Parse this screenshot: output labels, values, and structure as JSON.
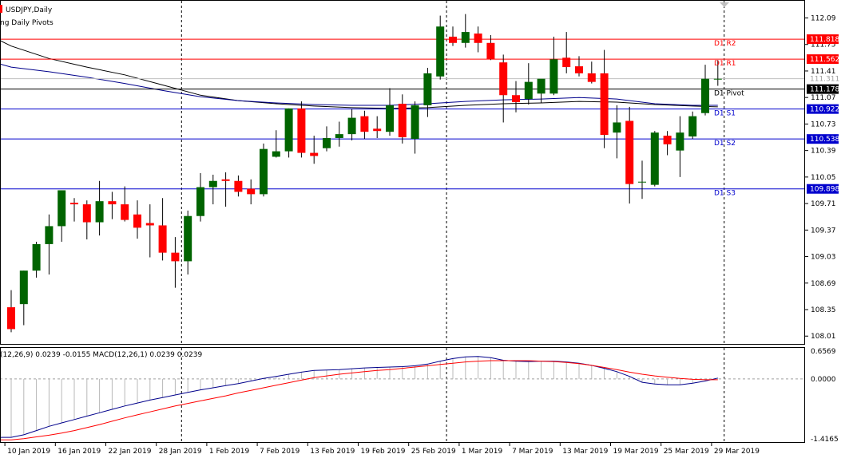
{
  "window": {
    "title": "USDJPY,Daily",
    "indicator_label": "ng Daily Pivots"
  },
  "colors": {
    "bull": "#006400",
    "bear": "#ff0000",
    "wick": "#000000",
    "resistance": "#ff0000",
    "support": "#0000cd",
    "pivot": "#000000",
    "ma_dark": "#000000",
    "ma_blue": "#00008b",
    "macd_line": "#00008b",
    "signal_line": "#ff0000",
    "grid": "#c0c0c0",
    "price_box": "#ffffff"
  },
  "chart_data": [
    {
      "type": "candlestick",
      "title": "USDJPY,Daily",
      "price_axis_ticks": [
        112.09,
        111.75,
        111.41,
        111.07,
        110.73,
        110.39,
        110.05,
        109.71,
        109.37,
        109.03,
        108.69,
        108.35,
        108.01
      ],
      "ylim": [
        107.91,
        112.31
      ],
      "date_labels": [
        {
          "label": "10 Jan 2019",
          "x": 0
        },
        {
          "label": "16 Jan 2019",
          "x": 4
        },
        {
          "label": "22 Jan 2019",
          "x": 8
        },
        {
          "label": "28 Jan 2019",
          "x": 12
        },
        {
          "label": "1 Feb 2019",
          "x": 16
        },
        {
          "label": "7 Feb 2019",
          "x": 20
        },
        {
          "label": "13 Feb 2019",
          "x": 24
        },
        {
          "label": "19 Feb 2019",
          "x": 28
        },
        {
          "label": "25 Feb 2019",
          "x": 32
        },
        {
          "label": "1 Mar 2019",
          "x": 36
        },
        {
          "label": "7 Mar 2019",
          "x": 40
        },
        {
          "label": "13 Mar 2019",
          "x": 44
        },
        {
          "label": "19 Mar 2019",
          "x": 48
        },
        {
          "label": "25 Mar 2019",
          "x": 52
        },
        {
          "label": "29 Mar 2019",
          "x": 56
        }
      ],
      "period_separators": [
        14,
        35,
        57
      ],
      "candles": [
        {
          "o": 108.38,
          "h": 108.6,
          "l": 108.06,
          "c": 108.1
        },
        {
          "o": 108.42,
          "h": 108.85,
          "l": 108.15,
          "c": 108.85
        },
        {
          "o": 108.85,
          "h": 109.22,
          "l": 108.76,
          "c": 109.19
        },
        {
          "o": 109.19,
          "h": 109.57,
          "l": 108.8,
          "c": 109.42
        },
        {
          "o": 109.42,
          "h": 109.88,
          "l": 109.22,
          "c": 109.88
        },
        {
          "o": 109.72,
          "h": 109.78,
          "l": 109.48,
          "c": 109.7
        },
        {
          "o": 109.7,
          "h": 109.75,
          "l": 109.25,
          "c": 109.47
        },
        {
          "o": 109.47,
          "h": 110.0,
          "l": 109.3,
          "c": 109.74
        },
        {
          "o": 109.74,
          "h": 109.86,
          "l": 109.51,
          "c": 109.7
        },
        {
          "o": 109.7,
          "h": 109.93,
          "l": 109.48,
          "c": 109.5
        },
        {
          "o": 109.57,
          "h": 109.75,
          "l": 109.26,
          "c": 109.4
        },
        {
          "o": 109.46,
          "h": 109.7,
          "l": 109.02,
          "c": 109.43
        },
        {
          "o": 109.43,
          "h": 109.78,
          "l": 108.98,
          "c": 109.08
        },
        {
          "o": 109.08,
          "h": 109.28,
          "l": 108.63,
          "c": 108.97
        },
        {
          "o": 108.97,
          "h": 109.62,
          "l": 108.8,
          "c": 109.55
        },
        {
          "o": 109.55,
          "h": 110.1,
          "l": 109.48,
          "c": 109.92
        },
        {
          "o": 109.92,
          "h": 110.08,
          "l": 109.7,
          "c": 110.0
        },
        {
          "o": 110.02,
          "h": 110.11,
          "l": 109.67,
          "c": 110.0
        },
        {
          "o": 110.0,
          "h": 110.07,
          "l": 109.8,
          "c": 109.86
        },
        {
          "o": 109.9,
          "h": 110.02,
          "l": 109.7,
          "c": 109.83
        },
        {
          "o": 109.83,
          "h": 110.48,
          "l": 109.8,
          "c": 110.41
        },
        {
          "o": 110.31,
          "h": 110.65,
          "l": 110.3,
          "c": 110.38
        },
        {
          "o": 110.38,
          "h": 110.93,
          "l": 110.3,
          "c": 110.93
        },
        {
          "o": 110.93,
          "h": 111.02,
          "l": 110.3,
          "c": 110.36
        },
        {
          "o": 110.36,
          "h": 110.58,
          "l": 110.22,
          "c": 110.32
        },
        {
          "o": 110.42,
          "h": 110.7,
          "l": 110.38,
          "c": 110.55
        },
        {
          "o": 110.55,
          "h": 110.76,
          "l": 110.44,
          "c": 110.6
        },
        {
          "o": 110.6,
          "h": 110.92,
          "l": 110.52,
          "c": 110.81
        },
        {
          "o": 110.83,
          "h": 110.9,
          "l": 110.54,
          "c": 110.63
        },
        {
          "o": 110.67,
          "h": 110.83,
          "l": 110.55,
          "c": 110.64
        },
        {
          "o": 110.63,
          "h": 111.19,
          "l": 110.58,
          "c": 110.97
        },
        {
          "o": 110.99,
          "h": 111.11,
          "l": 110.48,
          "c": 110.56
        },
        {
          "o": 110.54,
          "h": 111.02,
          "l": 110.35,
          "c": 110.97
        },
        {
          "o": 110.97,
          "h": 111.45,
          "l": 110.82,
          "c": 111.38
        },
        {
          "o": 111.34,
          "h": 112.12,
          "l": 111.3,
          "c": 111.98
        },
        {
          "o": 111.85,
          "h": 111.98,
          "l": 111.73,
          "c": 111.77
        },
        {
          "o": 111.77,
          "h": 112.14,
          "l": 111.71,
          "c": 111.91
        },
        {
          "o": 111.89,
          "h": 111.98,
          "l": 111.65,
          "c": 111.77
        },
        {
          "o": 111.77,
          "h": 111.87,
          "l": 111.55,
          "c": 111.56
        },
        {
          "o": 111.52,
          "h": 111.62,
          "l": 110.75,
          "c": 111.1
        },
        {
          "o": 111.1,
          "h": 111.28,
          "l": 110.88,
          "c": 111.01
        },
        {
          "o": 111.05,
          "h": 111.51,
          "l": 110.98,
          "c": 111.27
        },
        {
          "o": 111.12,
          "h": 111.3,
          "l": 111.0,
          "c": 111.31
        },
        {
          "o": 111.12,
          "h": 111.85,
          "l": 111.1,
          "c": 111.56
        },
        {
          "o": 111.58,
          "h": 111.91,
          "l": 111.38,
          "c": 111.46
        },
        {
          "o": 111.47,
          "h": 111.6,
          "l": 111.34,
          "c": 111.38
        },
        {
          "o": 111.38,
          "h": 111.53,
          "l": 111.25,
          "c": 111.27
        },
        {
          "o": 111.38,
          "h": 111.68,
          "l": 110.42,
          "c": 110.59
        },
        {
          "o": 110.62,
          "h": 110.97,
          "l": 110.29,
          "c": 110.75
        },
        {
          "o": 110.77,
          "h": 110.95,
          "l": 109.71,
          "c": 109.96
        },
        {
          "o": 109.98,
          "h": 110.26,
          "l": 109.77,
          "c": 109.99
        },
        {
          "o": 109.95,
          "h": 110.64,
          "l": 109.93,
          "c": 110.62
        },
        {
          "o": 110.58,
          "h": 110.64,
          "l": 110.33,
          "c": 110.47
        },
        {
          "o": 110.39,
          "h": 110.83,
          "l": 110.05,
          "c": 110.62
        },
        {
          "o": 110.57,
          "h": 110.89,
          "l": 110.54,
          "c": 110.83
        },
        {
          "o": 110.87,
          "h": 111.49,
          "l": 110.84,
          "c": 111.31
        },
        {
          "o": 111.31,
          "h": 111.55,
          "l": 111.22,
          "c": 111.31
        }
      ],
      "moving_averages": [
        {
          "color_key": "ma_dark",
          "values": [
            [
              0,
              111.73
            ],
            [
              3,
              111.57
            ],
            [
              6,
              111.46
            ],
            [
              9,
              111.36
            ],
            [
              12,
              111.23
            ],
            [
              15,
              111.1
            ],
            [
              18,
              111.03
            ],
            [
              21,
              110.99
            ],
            [
              24,
              110.96
            ],
            [
              27,
              110.94
            ],
            [
              30,
              110.93
            ],
            [
              33,
              110.94
            ],
            [
              36,
              110.97
            ],
            [
              39,
              110.99
            ],
            [
              42,
              111.0
            ],
            [
              45,
              111.02
            ],
            [
              48,
              111.01
            ],
            [
              51,
              110.98
            ],
            [
              54,
              110.96
            ],
            [
              56,
              110.95
            ]
          ]
        },
        {
          "color_key": "ma_blue",
          "values": [
            [
              0,
              111.46
            ],
            [
              3,
              111.4
            ],
            [
              6,
              111.33
            ],
            [
              9,
              111.25
            ],
            [
              12,
              111.16
            ],
            [
              15,
              111.08
            ],
            [
              18,
              111.03
            ],
            [
              21,
              111.0
            ],
            [
              24,
              110.98
            ],
            [
              27,
              110.97
            ],
            [
              30,
              110.97
            ],
            [
              33,
              110.99
            ],
            [
              36,
              111.02
            ],
            [
              39,
              111.04
            ],
            [
              42,
              111.05
            ],
            [
              45,
              111.07
            ],
            [
              48,
              111.05
            ],
            [
              51,
              110.99
            ],
            [
              54,
              110.97
            ],
            [
              56,
              110.97
            ]
          ]
        }
      ],
      "levels": [
        {
          "name": "D1 R2",
          "value": 111.818,
          "label": "111.818",
          "color_key": "resistance"
        },
        {
          "name": "D1 R1",
          "value": 111.562,
          "label": "111.562",
          "color_key": "resistance"
        },
        {
          "name": "D1 Pivot",
          "value": 111.178,
          "label": "111.178",
          "color_key": "pivot"
        },
        {
          "name": "D1 S1",
          "value": 110.922,
          "label": "110.922",
          "color_key": "support"
        },
        {
          "name": "D1 S2",
          "value": 110.538,
          "label": "110.538",
          "color_key": "support"
        },
        {
          "name": "D1 S3",
          "value": 109.898,
          "label": "109.898",
          "color_key": "support"
        }
      ],
      "current_price": {
        "value": 111.311,
        "label": "111.311"
      }
    },
    {
      "type": "line",
      "title": "(12,26,9) 0.0239 -0.0155 MACD(12,26,1) 0.0239 0.0239",
      "ylim": [
        -1.4165,
        0.6569
      ],
      "y_ticks": [
        {
          "label": "0.6569",
          "value": 0.6569
        },
        {
          "label": "0.0000",
          "value": 0.0
        },
        {
          "label": "-1.4165",
          "value": -1.4165
        }
      ],
      "series": [
        {
          "color_key": "macd_line",
          "values": [
            -1.38,
            -1.32,
            -1.22,
            -1.12,
            -1.04,
            -0.96,
            -0.88,
            -0.8,
            -0.72,
            -0.64,
            -0.57,
            -0.5,
            -0.44,
            -0.38,
            -0.32,
            -0.26,
            -0.21,
            -0.16,
            -0.11,
            -0.05,
            0.01,
            0.06,
            0.11,
            0.16,
            0.2,
            0.21,
            0.22,
            0.24,
            0.26,
            0.27,
            0.28,
            0.29,
            0.31,
            0.35,
            0.42,
            0.48,
            0.52,
            0.53,
            0.5,
            0.44,
            0.42,
            0.41,
            0.42,
            0.42,
            0.4,
            0.37,
            0.32,
            0.25,
            0.17,
            0.06,
            -0.08,
            -0.12,
            -0.14,
            -0.14,
            -0.1,
            -0.05,
            0.02
          ]
        },
        {
          "color_key": "signal_line",
          "values": [
            -1.44,
            -1.41,
            -1.37,
            -1.33,
            -1.28,
            -1.22,
            -1.15,
            -1.08,
            -1.0,
            -0.92,
            -0.85,
            -0.78,
            -0.71,
            -0.64,
            -0.58,
            -0.52,
            -0.46,
            -0.4,
            -0.33,
            -0.27,
            -0.21,
            -0.15,
            -0.09,
            -0.03,
            0.03,
            0.07,
            0.11,
            0.14,
            0.17,
            0.2,
            0.22,
            0.25,
            0.28,
            0.31,
            0.34,
            0.37,
            0.4,
            0.42,
            0.43,
            0.43,
            0.43,
            0.43,
            0.42,
            0.41,
            0.39,
            0.36,
            0.32,
            0.27,
            0.22,
            0.16,
            0.11,
            0.07,
            0.04,
            0.01,
            -0.01,
            -0.02,
            -0.02
          ]
        }
      ]
    }
  ]
}
